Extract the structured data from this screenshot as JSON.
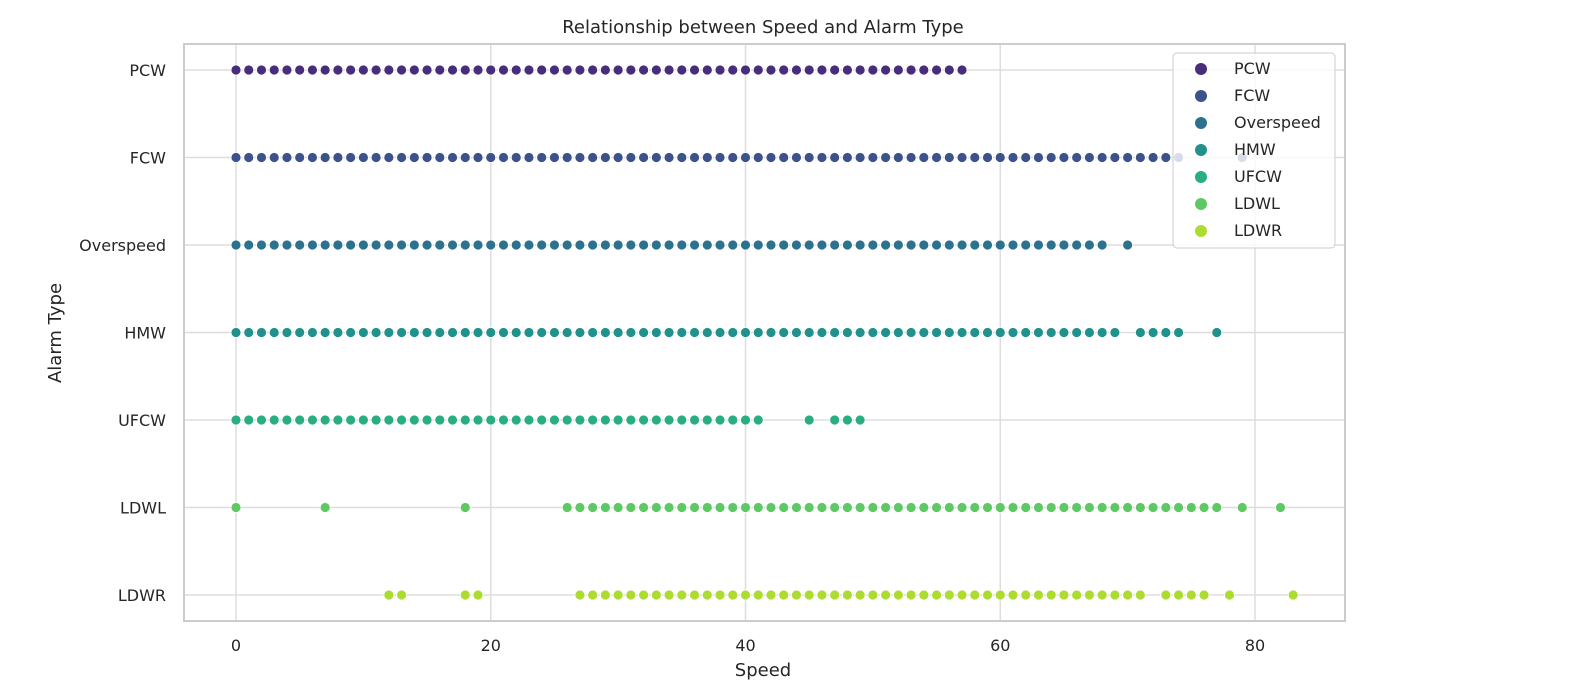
{
  "chart_data": {
    "type": "scatter",
    "title": "Relationship between Speed and Alarm Type",
    "xlabel": "Speed",
    "ylabel": "Alarm Type",
    "xlim": [
      -4,
      87
    ],
    "xticks": [
      0,
      20,
      40,
      60,
      80
    ],
    "categories": [
      "PCW",
      "FCW",
      "Overspeed",
      "HMW",
      "UFCW",
      "LDWL",
      "LDWR"
    ],
    "grid": true,
    "legend_position": "top-right",
    "series": [
      {
        "name": "PCW",
        "color": "#472d7b",
        "x": [
          0,
          1,
          2,
          3,
          4,
          5,
          6,
          7,
          8,
          9,
          10,
          11,
          12,
          13,
          14,
          15,
          16,
          17,
          18,
          19,
          20,
          21,
          22,
          23,
          24,
          25,
          26,
          27,
          28,
          29,
          30,
          31,
          32,
          33,
          34,
          35,
          36,
          37,
          38,
          39,
          40,
          41,
          42,
          43,
          44,
          45,
          46,
          47,
          48,
          49,
          50,
          51,
          52,
          53,
          54,
          55,
          56,
          57
        ]
      },
      {
        "name": "FCW",
        "color": "#3b528b",
        "x": [
          0,
          1,
          2,
          3,
          4,
          5,
          6,
          7,
          8,
          9,
          10,
          11,
          12,
          13,
          14,
          15,
          16,
          17,
          18,
          19,
          20,
          21,
          22,
          23,
          24,
          25,
          26,
          27,
          28,
          29,
          30,
          31,
          32,
          33,
          34,
          35,
          36,
          37,
          38,
          39,
          40,
          41,
          42,
          43,
          44,
          45,
          46,
          47,
          48,
          49,
          50,
          51,
          52,
          53,
          54,
          55,
          56,
          57,
          58,
          59,
          60,
          61,
          62,
          63,
          64,
          65,
          66,
          67,
          68,
          69,
          70,
          71,
          72,
          73,
          74,
          79
        ]
      },
      {
        "name": "Overspeed",
        "color": "#2c728e",
        "x": [
          0,
          1,
          2,
          3,
          4,
          5,
          6,
          7,
          8,
          9,
          10,
          11,
          12,
          13,
          14,
          15,
          16,
          17,
          18,
          19,
          20,
          21,
          22,
          23,
          24,
          25,
          26,
          27,
          28,
          29,
          30,
          31,
          32,
          33,
          34,
          35,
          36,
          37,
          38,
          39,
          40,
          41,
          42,
          43,
          44,
          45,
          46,
          47,
          48,
          49,
          50,
          51,
          52,
          53,
          54,
          55,
          56,
          57,
          58,
          59,
          60,
          61,
          62,
          63,
          64,
          65,
          66,
          67,
          68,
          70
        ]
      },
      {
        "name": "HMW",
        "color": "#21918c",
        "x": [
          0,
          1,
          2,
          3,
          4,
          5,
          6,
          7,
          8,
          9,
          10,
          11,
          12,
          13,
          14,
          15,
          16,
          17,
          18,
          19,
          20,
          21,
          22,
          23,
          24,
          25,
          26,
          27,
          28,
          29,
          30,
          31,
          32,
          33,
          34,
          35,
          36,
          37,
          38,
          39,
          40,
          41,
          42,
          43,
          44,
          45,
          46,
          47,
          48,
          49,
          50,
          51,
          52,
          53,
          54,
          55,
          56,
          57,
          58,
          59,
          60,
          61,
          62,
          63,
          64,
          65,
          66,
          67,
          68,
          69,
          71,
          72,
          73,
          74,
          77
        ]
      },
      {
        "name": "UFCW",
        "color": "#28ae80",
        "x": [
          0,
          1,
          2,
          3,
          4,
          5,
          6,
          7,
          8,
          9,
          10,
          11,
          12,
          13,
          14,
          15,
          16,
          17,
          18,
          19,
          20,
          21,
          22,
          23,
          24,
          25,
          26,
          27,
          28,
          29,
          30,
          31,
          32,
          33,
          34,
          35,
          36,
          37,
          38,
          39,
          40,
          41,
          45,
          47,
          48,
          49
        ]
      },
      {
        "name": "LDWL",
        "color": "#5ec962",
        "x": [
          0,
          7,
          18,
          26,
          27,
          28,
          29,
          30,
          31,
          32,
          33,
          34,
          35,
          36,
          37,
          38,
          39,
          40,
          41,
          42,
          43,
          44,
          45,
          46,
          47,
          48,
          49,
          50,
          51,
          52,
          53,
          54,
          55,
          56,
          57,
          58,
          59,
          60,
          61,
          62,
          63,
          64,
          65,
          66,
          67,
          68,
          69,
          70,
          71,
          72,
          73,
          74,
          75,
          76,
          77,
          79,
          82
        ]
      },
      {
        "name": "LDWR",
        "color": "#addc30",
        "x": [
          12,
          13,
          18,
          19,
          27,
          28,
          29,
          30,
          31,
          32,
          33,
          34,
          35,
          36,
          37,
          38,
          39,
          40,
          41,
          42,
          43,
          44,
          45,
          46,
          47,
          48,
          49,
          50,
          51,
          52,
          53,
          54,
          55,
          56,
          57,
          58,
          59,
          60,
          61,
          62,
          63,
          64,
          65,
          66,
          67,
          68,
          69,
          70,
          71,
          73,
          74,
          75,
          76,
          78,
          83
        ]
      }
    ]
  }
}
